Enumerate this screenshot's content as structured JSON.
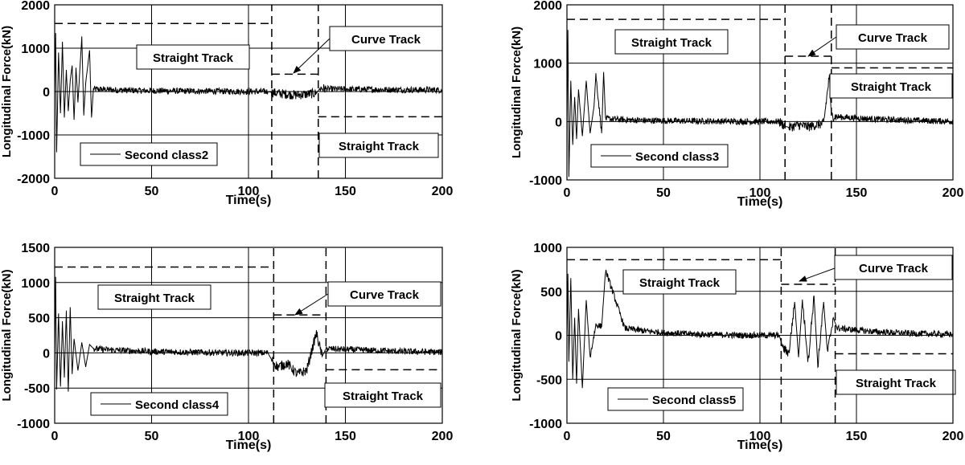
{
  "colors": {
    "signal": "#000000",
    "frame": "#000000",
    "grid": "#000000",
    "background": "#ffffff"
  },
  "chart_data": [
    {
      "type": "line",
      "xlabel": "Time(s)",
      "ylabel": "Longitudinal Force(kN)",
      "xlim": [
        0,
        200
      ],
      "ylim": [
        -2000,
        2000
      ],
      "xticks": [
        "0",
        "50",
        "100",
        "150",
        "200"
      ],
      "yticks": [
        "-2000",
        "-1000",
        "0",
        "1000",
        "2000"
      ],
      "grid": true,
      "legend": {
        "label": "Second class2",
        "position": "bottom-left"
      },
      "series": [
        {
          "name": "Second class2",
          "x": [
            0,
            0.5,
            1,
            2,
            3,
            4,
            5,
            6,
            7,
            8,
            9,
            10,
            11,
            12,
            14,
            15,
            16,
            18,
            19,
            20,
            30,
            40,
            50,
            60,
            70,
            80,
            90,
            100,
            105,
            110,
            112,
            115,
            120,
            125,
            130,
            135,
            137,
            140,
            150,
            160,
            170,
            180,
            190,
            200
          ],
          "y": [
            0,
            1350,
            -1400,
            900,
            -500,
            1150,
            -600,
            500,
            -450,
            250,
            600,
            -650,
            550,
            -250,
            1270,
            -550,
            200,
            950,
            -600,
            60,
            40,
            25,
            20,
            15,
            10,
            10,
            5,
            0,
            0,
            0,
            -20,
            -40,
            -60,
            -80,
            -60,
            -40,
            80,
            60,
            55,
            50,
            45,
            40,
            40,
            35
          ]
        }
      ],
      "annotations": [
        {
          "text": "Straight Track",
          "x_range": [
            0,
            112
          ],
          "level": 1570
        },
        {
          "text": "Curve Track",
          "x_range": [
            112,
            136
          ],
          "level": 400
        },
        {
          "text": "Straight Track",
          "x_range": [
            136,
            200
          ],
          "level": -580
        }
      ]
    },
    {
      "type": "line",
      "xlabel": "Time(s)",
      "ylabel": "Longitudinal Force(kN)",
      "xlim": [
        0,
        200
      ],
      "ylim": [
        -1000,
        2000
      ],
      "xticks": [
        "0",
        "50",
        "100",
        "150",
        "200"
      ],
      "yticks": [
        "-1000",
        "0",
        "1000",
        "2000"
      ],
      "grid": true,
      "legend": {
        "label": "Second class3",
        "position": "bottom-left"
      },
      "series": [
        {
          "name": "Second class3",
          "x": [
            0,
            0.5,
            1,
            2,
            3,
            4,
            5,
            6,
            8,
            10,
            12,
            14,
            15,
            18,
            19,
            20,
            30,
            40,
            50,
            60,
            70,
            80,
            90,
            100,
            110,
            113,
            115,
            120,
            125,
            130,
            133,
            136,
            137,
            140,
            150,
            160,
            170,
            180,
            190,
            200
          ],
          "y": [
            0,
            1570,
            -950,
            700,
            -400,
            420,
            -300,
            550,
            -250,
            700,
            -200,
            250,
            800,
            -200,
            850,
            50,
            30,
            20,
            15,
            10,
            8,
            5,
            0,
            0,
            0,
            -80,
            -100,
            -60,
            -90,
            -50,
            -40,
            800,
            100,
            80,
            60,
            40,
            30,
            20,
            10,
            5
          ]
        }
      ],
      "annotations": [
        {
          "text": "Straight Track",
          "x_range": [
            0,
            113
          ],
          "level": 1750
        },
        {
          "text": "Curve Track",
          "x_range": [
            113,
            137
          ],
          "level": 1120
        },
        {
          "text": "Straight Track",
          "x_range": [
            137,
            200
          ],
          "level": 920
        }
      ]
    },
    {
      "type": "line",
      "xlabel": "Time(s)",
      "ylabel": "Longitudinal Force(kN)",
      "xlim": [
        0,
        200
      ],
      "ylim": [
        -1000,
        1500
      ],
      "xticks": [
        "0",
        "50",
        "100",
        "150",
        "200"
      ],
      "yticks": [
        "-1000",
        "-500",
        "0",
        "500",
        "1000",
        "1500"
      ],
      "grid": true,
      "legend": {
        "label": "Second class4",
        "position": "bottom-left"
      },
      "series": [
        {
          "name": "Second class4",
          "x": [
            0,
            0.5,
            1,
            2,
            3,
            4,
            5,
            6,
            7,
            8,
            9,
            10,
            12,
            14,
            16,
            18,
            20,
            30,
            40,
            50,
            60,
            70,
            80,
            90,
            100,
            110,
            112,
            115,
            120,
            125,
            130,
            135,
            138,
            140,
            150,
            160,
            170,
            180,
            190,
            200
          ],
          "y": [
            0,
            1080,
            -520,
            560,
            -480,
            450,
            -350,
            600,
            -550,
            650,
            -300,
            200,
            -250,
            150,
            -200,
            120,
            60,
            40,
            30,
            20,
            15,
            10,
            5,
            0,
            0,
            0,
            -100,
            -200,
            -150,
            -300,
            -250,
            280,
            -50,
            60,
            50,
            40,
            30,
            20,
            15,
            10
          ]
        }
      ],
      "annotations": [
        {
          "text": "Straight Track",
          "x_range": [
            0,
            113
          ],
          "level": 1220
        },
        {
          "text": "Curve Track",
          "x_range": [
            113,
            140
          ],
          "level": 540
        },
        {
          "text": "Straight Track",
          "x_range": [
            140,
            200
          ],
          "level": -240
        }
      ]
    },
    {
      "type": "line",
      "xlabel": "Time(s)",
      "ylabel": "Longitudinal Force(kN)",
      "xlim": [
        0,
        200
      ],
      "ylim": [
        -1000,
        1000
      ],
      "xticks": [
        "0",
        "50",
        "100",
        "150",
        "200"
      ],
      "yticks": [
        "-1000",
        "-500",
        "0",
        "500",
        "1000"
      ],
      "grid": true,
      "legend": {
        "label": "Second class5",
        "position": "bottom-left"
      },
      "series": [
        {
          "name": "Second class5",
          "x": [
            0,
            0.5,
            1,
            2,
            3,
            4,
            5,
            6,
            8,
            10,
            12,
            15,
            18,
            20,
            30,
            40,
            50,
            60,
            70,
            80,
            90,
            100,
            105,
            110,
            112,
            115,
            118,
            120,
            122,
            125,
            128,
            130,
            133,
            135,
            138,
            140,
            150,
            160,
            170,
            180,
            190,
            200
          ],
          "y": [
            0,
            700,
            -300,
            650,
            -500,
            200,
            -550,
            300,
            -600,
            400,
            -250,
            120,
            100,
            740,
            80,
            50,
            30,
            20,
            10,
            5,
            0,
            0,
            0,
            0,
            -150,
            -200,
            380,
            -250,
            400,
            -300,
            450,
            -350,
            380,
            -200,
            200,
            80,
            60,
            40,
            30,
            20,
            15,
            10
          ]
        }
      ],
      "annotations": [
        {
          "text": "Straight Track",
          "x_range": [
            0,
            111
          ],
          "level": 860
        },
        {
          "text": "Curve Track",
          "x_range": [
            111,
            139
          ],
          "level": 580
        },
        {
          "text": "Straight Track",
          "x_range": [
            139,
            200
          ],
          "level": -210
        }
      ]
    }
  ]
}
